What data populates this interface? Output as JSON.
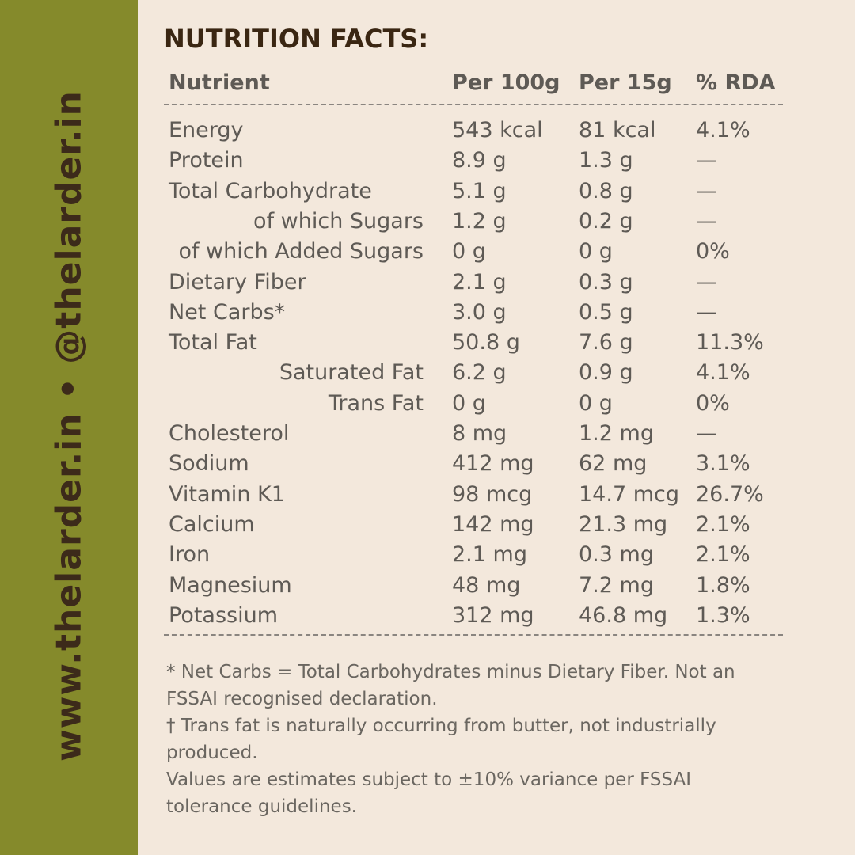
{
  "sidebar": {
    "text": "www.thelarder.in • @thelarder.in"
  },
  "title": "NUTRITION FACTS:",
  "table": {
    "header": [
      "Nutrient",
      "Per 100g",
      "Per 15g",
      "% RDA"
    ],
    "rows": [
      [
        "Energy",
        "543 kcal",
        "81 kcal",
        "4.1%"
      ],
      [
        "Protein",
        "8.9 g",
        "1.3 g",
        "—"
      ],
      [
        "Total Carbohydrate",
        "5.1 g",
        "0.8 g",
        "—"
      ],
      [
        "of which Sugars",
        "1.2 g",
        "0.2 g",
        "—"
      ],
      [
        "of which Added Sugars",
        "0 g",
        "0 g",
        "0%"
      ],
      [
        "Dietary Fiber",
        "2.1 g",
        "0.3 g",
        "—"
      ],
      [
        "Net Carbs*",
        "3.0 g",
        "0.5 g",
        "—"
      ],
      [
        "Total Fat",
        "50.8 g",
        "7.6 g",
        "11.3%"
      ],
      [
        "Saturated Fat",
        "6.2 g",
        "0.9 g",
        "4.1%"
      ],
      [
        "Trans Fat",
        "0 g",
        "0 g",
        "0%"
      ],
      [
        "Cholesterol",
        "8 mg",
        "1.2 mg",
        "—"
      ],
      [
        "Sodium",
        "412 mg",
        "62 mg",
        "3.1%"
      ],
      [
        "Vitamin K1",
        "98 mcg",
        "14.7 mcg",
        "26.7%"
      ],
      [
        "Calcium",
        "142 mg",
        "21.3 mg",
        "2.1%"
      ],
      [
        "Iron",
        "2.1 mg",
        "0.3 mg",
        "2.1%"
      ],
      [
        "Magnesium",
        "48 mg",
        "7.2 mg",
        "1.8%"
      ],
      [
        "Potassium",
        "312 mg",
        "46.8 mg",
        "1.3%"
      ]
    ]
  },
  "footnotes": [
    "* Net Carbs = Total Carbohydrates minus Dietary Fiber. Not an FSSAI recognised declaration.",
    "† Trans fat is naturally occurring from butter, not industrially produced.",
    "Values are estimates subject to ±10% variance per FSSAI tolerance guidelines."
  ]
}
